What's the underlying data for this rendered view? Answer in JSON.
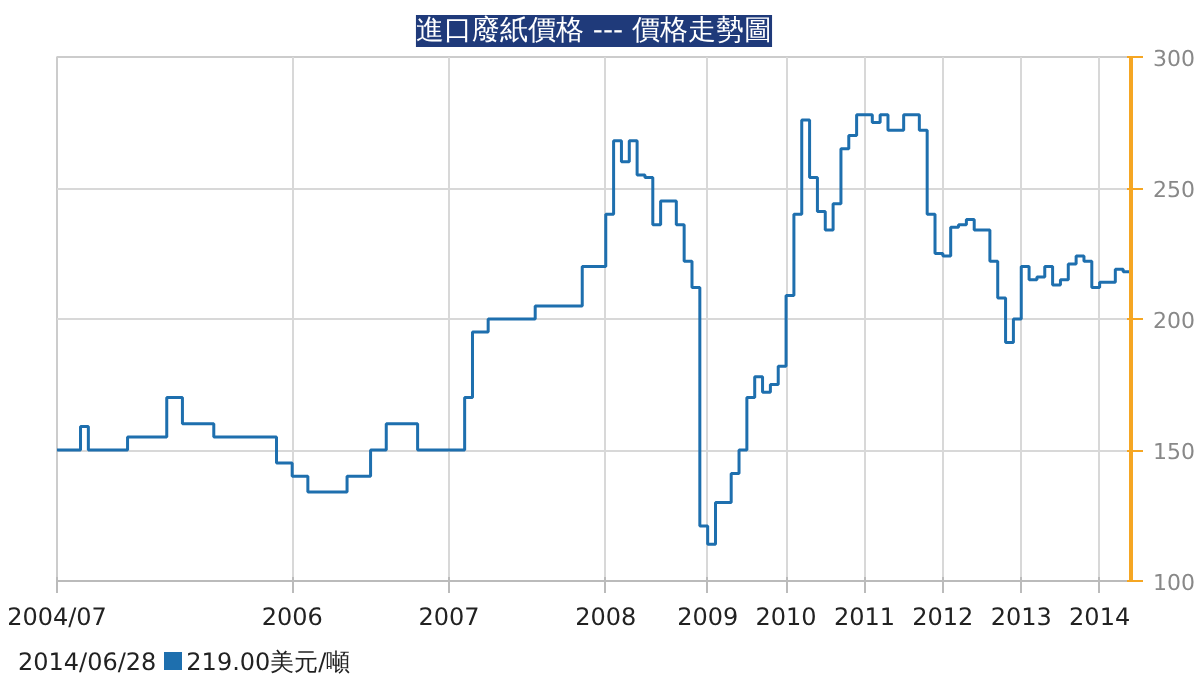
{
  "chart_data": {
    "type": "step",
    "title": "進口廢紙價格 --- 價格走勢圖",
    "categories": [
      "2004/07",
      null,
      null,
      null,
      null,
      null,
      null,
      null,
      null,
      null,
      null,
      null,
      null,
      null,
      null,
      null,
      null,
      null,
      null,
      null,
      null,
      null,
      null,
      null,
      null,
      null,
      null,
      null,
      null,
      null,
      "2006",
      null,
      null,
      null,
      null,
      null,
      null,
      null,
      null,
      null,
      null,
      null,
      null,
      null,
      null,
      null,
      null,
      null,
      null,
      null,
      "2007",
      null,
      null,
      null,
      null,
      null,
      null,
      null,
      null,
      null,
      null,
      null,
      null,
      null,
      null,
      null,
      null,
      null,
      null,
      null,
      "2008",
      null,
      null,
      null,
      null,
      null,
      null,
      null,
      null,
      null,
      null,
      null,
      null,
      "2009",
      null,
      null,
      null,
      null,
      null,
      null,
      null,
      null,
      null,
      "2010",
      null,
      null,
      null,
      null,
      null,
      null,
      null,
      null,
      null,
      "2011",
      null,
      null,
      null,
      null,
      null,
      null,
      null,
      null,
      null,
      "2012",
      null,
      null,
      null,
      null,
      null,
      null,
      null,
      null,
      null,
      "2013",
      null,
      null,
      null,
      null,
      null,
      null,
      null,
      null,
      null,
      "2014",
      null,
      null,
      null,
      null
    ],
    "series": [
      {
        "color": "#1e6fae",
        "values": [
          150,
          150,
          150,
          159,
          150,
          150,
          150,
          150,
          150,
          155,
          155,
          155,
          155,
          155,
          170,
          170,
          160,
          160,
          160,
          160,
          155,
          155,
          155,
          155,
          155,
          155,
          155,
          155,
          145,
          145,
          140,
          140,
          134,
          134,
          134,
          134,
          134,
          140,
          140,
          140,
          150,
          150,
          160,
          160,
          160,
          160,
          150,
          150,
          150,
          150,
          150,
          150,
          170,
          195,
          195,
          200,
          200,
          200,
          200,
          200,
          200,
          205,
          205,
          205,
          205,
          205,
          205,
          220,
          220,
          220,
          240,
          268,
          260,
          268,
          255,
          254,
          236,
          245,
          245,
          236,
          222,
          212,
          121,
          114,
          130,
          130,
          141,
          150,
          170,
          178,
          172,
          175,
          182,
          209,
          240,
          276,
          254,
          241,
          234,
          244,
          265,
          270,
          278,
          278,
          275,
          278,
          272,
          272,
          278,
          278,
          272,
          240,
          225,
          224,
          235,
          236,
          238,
          234,
          234,
          222,
          208,
          191,
          200,
          220,
          215,
          216,
          220,
          213,
          215,
          221,
          224,
          222,
          212,
          214,
          214,
          219,
          218,
          219
        ]
      }
    ],
    "ylim": [
      100,
      300
    ],
    "yticks": [
      100,
      150,
      200,
      250,
      300
    ],
    "grid": true,
    "annotations": [
      "2014/06/28",
      "219.00美元/噸"
    ]
  }
}
